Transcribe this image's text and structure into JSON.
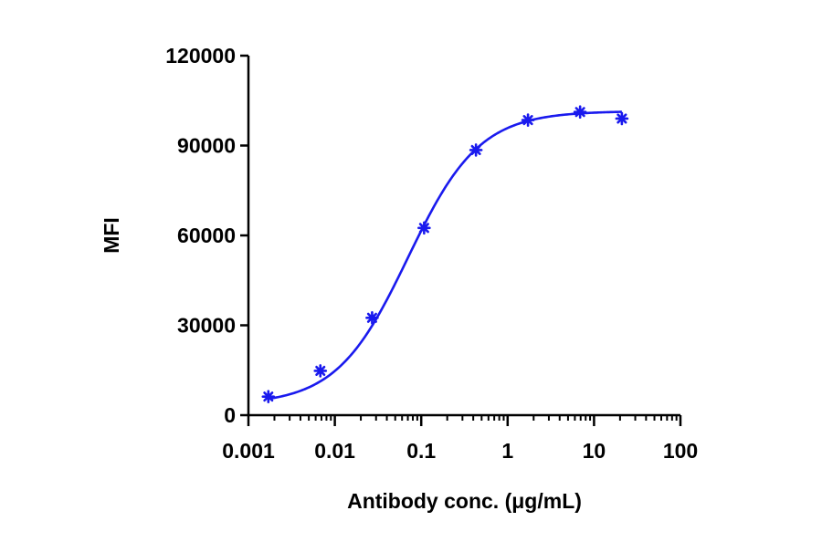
{
  "chart_data": {
    "type": "scatter",
    "title": "",
    "xlabel": "Antibody conc. (μg/mL)",
    "ylabel": "MFI",
    "x_scale": "log",
    "xlim": [
      0.001,
      100
    ],
    "ylim": [
      0,
      120000
    ],
    "x_ticks": [
      "0.001",
      "0.01",
      "0.1",
      "1",
      "10",
      "100"
    ],
    "y_ticks": [
      "0",
      "30000",
      "60000",
      "90000",
      "120000"
    ],
    "grid": false,
    "legend": "none",
    "color": "#1a1aee",
    "series": [
      {
        "x": [
          0.0017,
          0.0068,
          0.027,
          0.108,
          0.43,
          1.72,
          6.9,
          21
        ],
        "y": [
          6200,
          14800,
          32500,
          62500,
          88500,
          98500,
          101200,
          99000
        ]
      }
    ],
    "fit": {
      "type": "4PL",
      "bottom": 3500,
      "top": 101500,
      "ec50": 0.07,
      "hill": 1.05
    }
  }
}
